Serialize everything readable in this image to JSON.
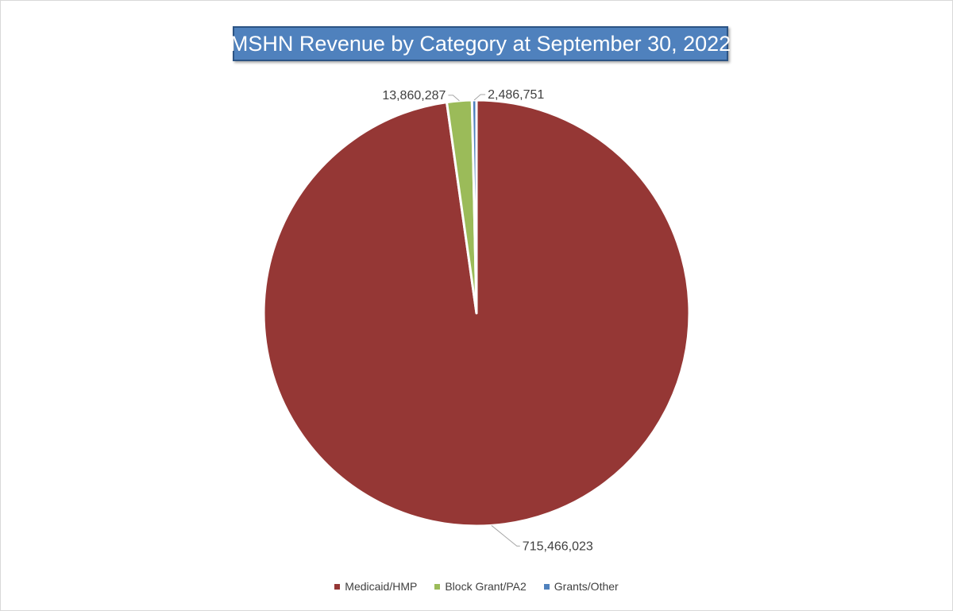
{
  "chart_data": {
    "type": "pie",
    "title": "MSHN Revenue by Category at September 30, 2022",
    "slices": [
      {
        "label": "Medicaid/HMP",
        "value": 715466023,
        "value_label": "715,466,023",
        "color": "#953735"
      },
      {
        "label": "Block Grant/PA2",
        "value": 13860287,
        "value_label": "13,860,287",
        "color": "#9bbb59"
      },
      {
        "label": "Grants/Other",
        "value": 2486751,
        "value_label": "2,486,751",
        "color": "#4f81bd"
      }
    ],
    "legend_position": "bottom",
    "data_labels": "outside with leader lines"
  }
}
